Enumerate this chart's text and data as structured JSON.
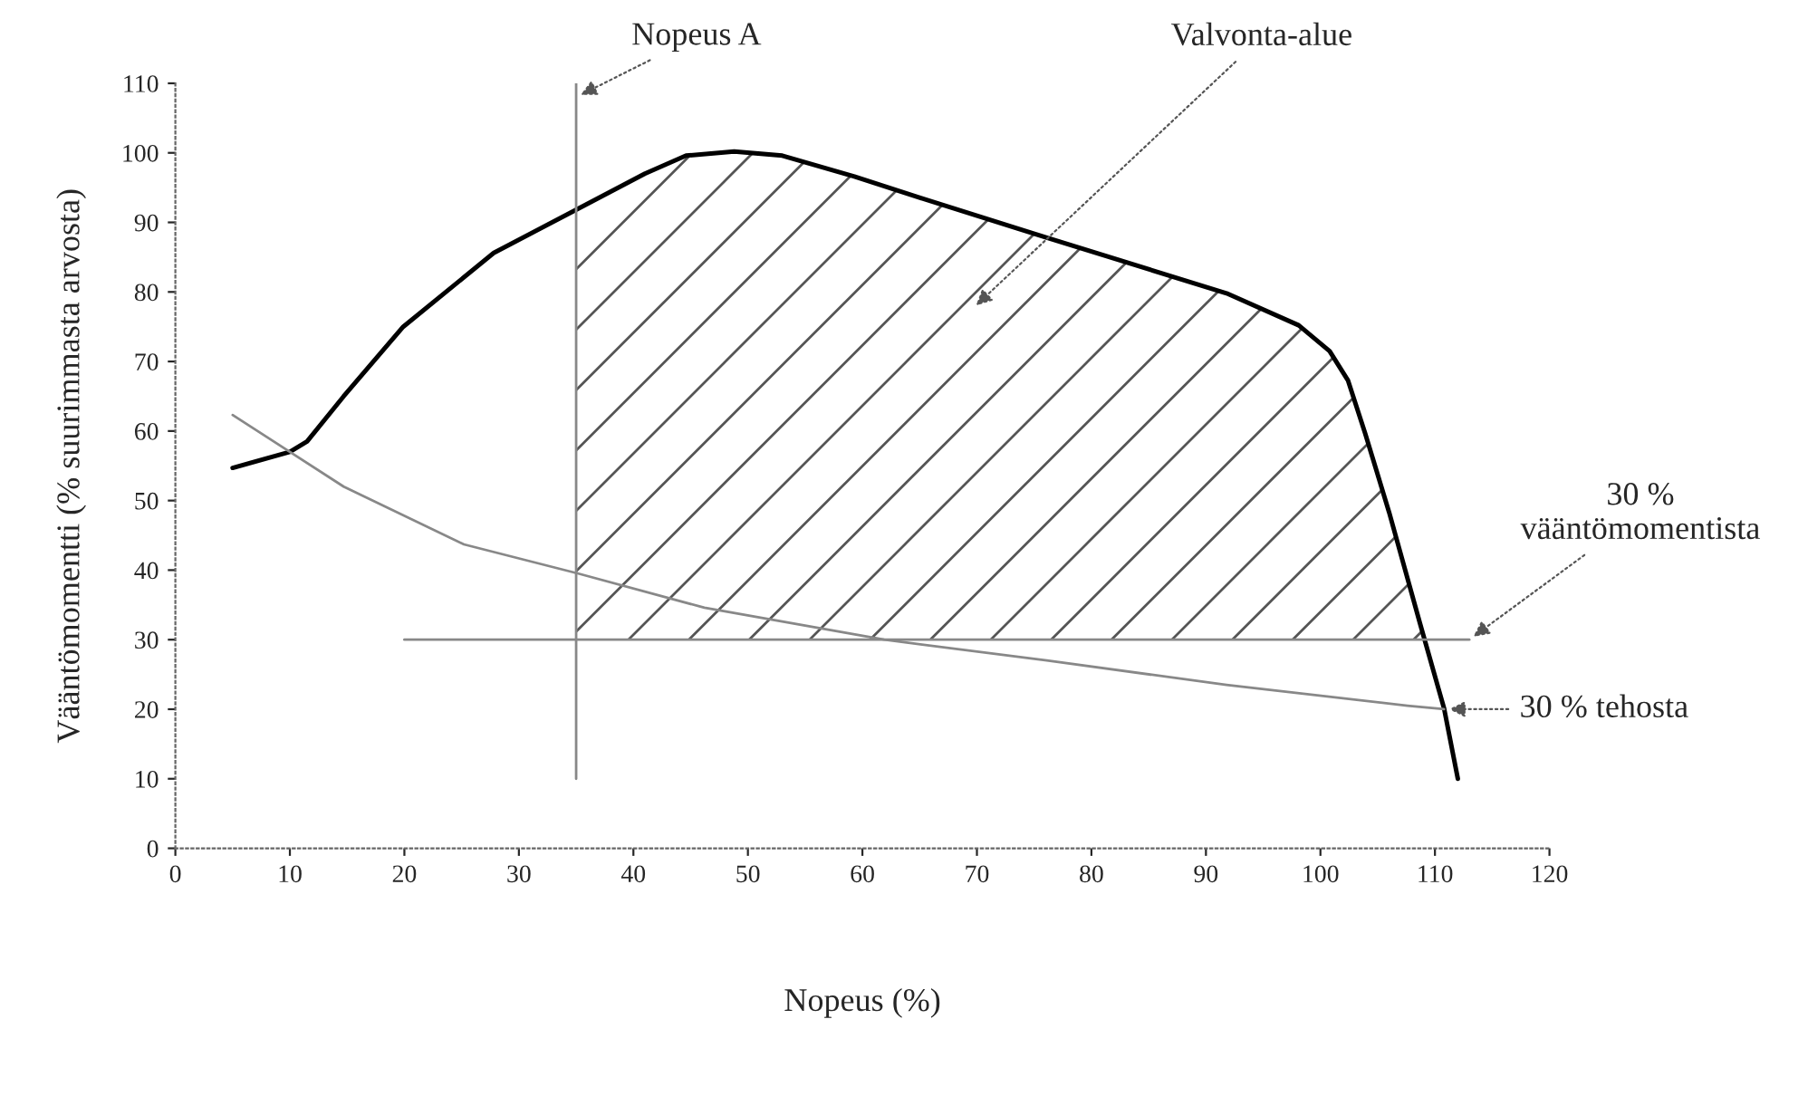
{
  "chart_data": {
    "type": "line",
    "xlabel": "Nopeus (%)",
    "ylabel": "Vääntömomentti (% suurimmasta arvosta)",
    "xlim": [
      0,
      120
    ],
    "xticks": [
      0,
      10,
      20,
      30,
      40,
      50,
      60,
      70,
      80,
      90,
      100,
      110,
      120
    ],
    "ylim": [
      0,
      110
    ],
    "yticks": [
      0,
      10,
      20,
      30,
      40,
      50,
      60,
      70,
      80,
      90,
      100,
      110
    ],
    "grid": false,
    "legend": false,
    "series": [
      {
        "type": "line",
        "color": "#000000",
        "x": [
          5,
          10,
          11.5,
          14.7,
          19.9,
          27.8,
          35.2,
          41,
          44.6,
          48.8,
          53,
          59.3,
          65.1,
          76.1,
          91.8,
          98.1,
          100.8,
          102.4,
          103.9,
          106,
          108.7,
          110.8,
          112
        ],
        "values": [
          54.7,
          57,
          58.5,
          65,
          75,
          85.6,
          92,
          97,
          99.6,
          100.2,
          99.6,
          96.6,
          93.5,
          87.8,
          79.8,
          75.2,
          71.5,
          67.3,
          59.7,
          48.3,
          32.3,
          20.1,
          10
        ]
      },
      {
        "type": "line",
        "color": "#888888",
        "x": [
          5,
          10,
          14.7,
          25.2,
          35.2,
          46.2,
          61.9,
          76.1,
          91.8,
          107.6,
          110.8
        ],
        "values": [
          62.3,
          57,
          52,
          43.7,
          39.5,
          34.6,
          30,
          27,
          23.5,
          20.5,
          20
        ]
      },
      {
        "type": "line",
        "color": "#888888",
        "x": [
          20,
          113
        ],
        "values": [
          30,
          30
        ]
      },
      {
        "type": "line",
        "color": "#888888",
        "x": [
          35,
          35
        ],
        "values": [
          10,
          110
        ]
      }
    ],
    "annotations": [
      {
        "text": "Nopeus A",
        "x": 35,
        "y": 108
      },
      "Valvonta-alue",
      {
        "text": "30 %\nvääntömomentista",
        "x": 113,
        "y": 30
      },
      {
        "text": "30 % tehosta",
        "x": 110.8,
        "y": 20
      }
    ]
  }
}
